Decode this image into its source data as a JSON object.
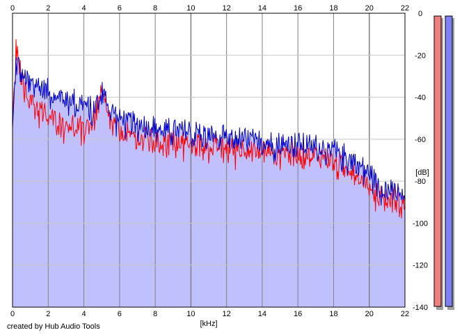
{
  "chart_data": {
    "type": "line",
    "xlabel": "[kHz]",
    "ylabel": "[dB]",
    "xlim": [
      0,
      22
    ],
    "ylim": [
      -140,
      0
    ],
    "x_ticks": [
      0,
      2,
      4,
      6,
      8,
      10,
      12,
      14,
      16,
      18,
      20,
      22
    ],
    "x_tick_labels": [
      "0",
      "2",
      "4",
      "6",
      "8",
      "10",
      "12",
      "14",
      "16",
      "18",
      "20",
      "22"
    ],
    "y_ticks": [
      0,
      -20,
      -40,
      -60,
      -80,
      -100,
      -120,
      -140
    ],
    "y_tick_labels": [
      "0",
      "-20",
      "-40",
      "-60",
      "-80",
      "-100",
      "-120",
      "-140"
    ],
    "grid": true,
    "fill_color": "#c0c0ff",
    "series": [
      {
        "color": "#0000c8",
        "x": [
          0,
          0.2,
          0.5,
          1.0,
          1.5,
          2.0,
          2.5,
          3.0,
          3.5,
          4.0,
          4.5,
          5.0,
          5.5,
          6.0,
          7.0,
          8.0,
          9.0,
          10.0,
          11.0,
          12.0,
          13.0,
          14.0,
          15.0,
          16.0,
          17.0,
          18.0,
          19.0,
          20.0,
          20.5,
          21.0,
          21.5,
          22.0
        ],
        "y": [
          -55,
          -20,
          -28,
          -33,
          -33,
          -35,
          -37,
          -40,
          -40,
          -42,
          -45,
          -35,
          -45,
          -48,
          -52,
          -53,
          -55,
          -55,
          -57,
          -58,
          -59,
          -60,
          -61,
          -61,
          -62,
          -64,
          -68,
          -75,
          -80,
          -83,
          -84,
          -88
        ]
      },
      {
        "color": "#ff0000",
        "x": [
          0,
          0.2,
          0.5,
          1.0,
          1.5,
          2.0,
          2.5,
          3.0,
          3.5,
          4.0,
          4.5,
          5.0,
          5.5,
          6.0,
          7.0,
          8.0,
          9.0,
          10.0,
          11.0,
          12.0,
          13.0,
          14.0,
          15.0,
          16.0,
          17.0,
          18.0,
          19.0,
          20.0,
          20.5,
          21.0,
          21.5,
          22.0
        ],
        "y": [
          -50,
          -16,
          -30,
          -40,
          -45,
          -48,
          -50,
          -52,
          -52,
          -54,
          -50,
          -38,
          -50,
          -55,
          -58,
          -60,
          -60,
          -60,
          -62,
          -63,
          -63,
          -64,
          -65,
          -65,
          -66,
          -70,
          -72,
          -80,
          -85,
          -86,
          -86,
          -90
        ]
      }
    ],
    "level_meters": [
      {
        "color": "#f08080"
      },
      {
        "color": "#8080f0"
      }
    ]
  },
  "footer": {
    "credit": "created by Hub Audio Tools"
  }
}
